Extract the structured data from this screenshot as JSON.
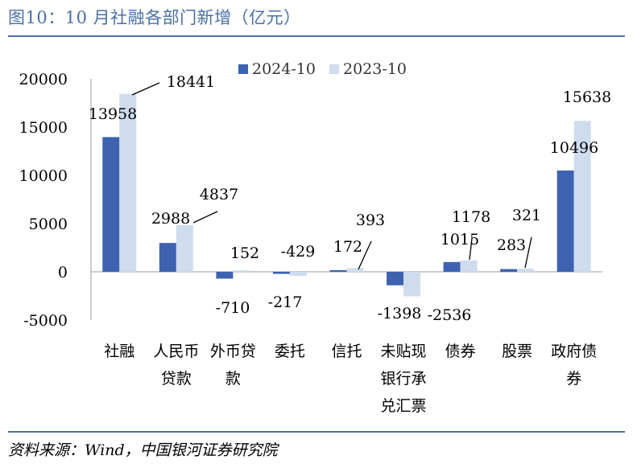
{
  "figure_title": "图10：10 月社融各部门新增（亿元）",
  "source": "资料来源：Wind，中国银河证券研究院",
  "colors": {
    "series_2024": "#3d62b0",
    "series_2023": "#cfdcee",
    "axis": "#999999",
    "rule": "#4a6fa5"
  },
  "chart_data": {
    "type": "bar",
    "title": "",
    "xlabel": "",
    "ylabel": "",
    "ylim": [
      -5000,
      20000
    ],
    "yticks": [
      "20000",
      "15000",
      "10000",
      "5000",
      "0",
      "-5000"
    ],
    "grid": false,
    "legend_position": "top-center",
    "categories": [
      "社融",
      "人民币贷款",
      "外币贷款",
      "委托",
      "信托",
      "未贴现银行承兑汇票",
      "债券",
      "股票",
      "政府债券"
    ],
    "category_lines": [
      [
        "社融"
      ],
      [
        "人民币",
        "贷款"
      ],
      [
        "外币贷",
        "款"
      ],
      [
        "委托"
      ],
      [
        "信托"
      ],
      [
        "未贴现",
        "银行承",
        "兑汇票"
      ],
      [
        "债券"
      ],
      [
        "股票"
      ],
      [
        "政府债",
        "券"
      ]
    ],
    "series": [
      {
        "name": "2024-10",
        "values": [
          13958,
          2988,
          -710,
          -217,
          172,
          -1398,
          1015,
          283,
          10496
        ],
        "labels": [
          "13958",
          "2988",
          "-710",
          "-217",
          "172",
          "-1398",
          "1015",
          "283",
          "10496"
        ]
      },
      {
        "name": "2023-10",
        "values": [
          18441,
          4837,
          152,
          -429,
          393,
          -2536,
          1178,
          321,
          15638
        ],
        "labels": [
          "18441",
          "4837",
          "152",
          "-429",
          "393",
          "-2536",
          "1178",
          "321",
          "15638"
        ]
      }
    ]
  }
}
